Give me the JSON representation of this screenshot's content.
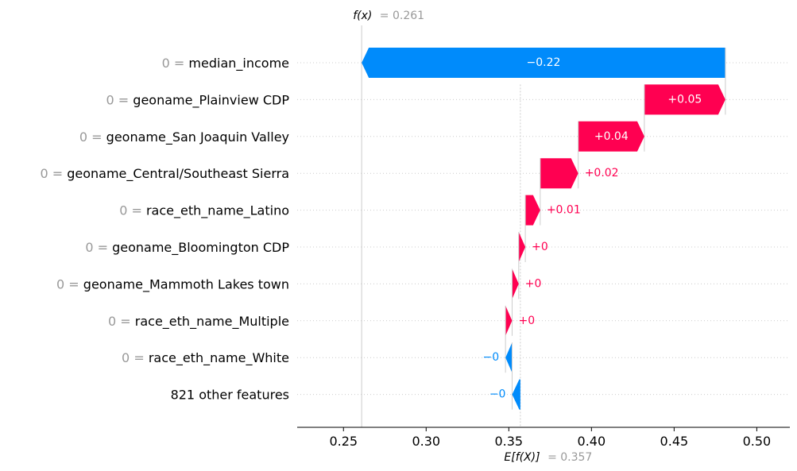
{
  "colors": {
    "positive": "#ff0051",
    "negative": "#008bfb",
    "grid": "#cccccc",
    "muted": "#999999"
  },
  "chart_data": {
    "type": "waterfall",
    "title": "",
    "xlabel": "",
    "ylabel": "",
    "xlim": [
      0.222,
      0.52
    ],
    "xticks": [
      "0.25",
      "0.30",
      "0.35",
      "0.40",
      "0.45",
      "0.50"
    ],
    "xtick_values": [
      0.25,
      0.3,
      0.35,
      0.4,
      0.45,
      0.5
    ],
    "base_value": 0.357,
    "output_value": 0.261,
    "fx_label": "f(x)",
    "fx_value_text": "= 0.261",
    "ex_label": "E[f(X)]",
    "ex_value_text": "= 0.357",
    "features": [
      {
        "value_text": "0 =",
        "name": "median_income",
        "start": 0.481,
        "end": 0.261,
        "label": "−0.22",
        "sign": "neg"
      },
      {
        "value_text": "0 =",
        "name": "geoname_Plainview CDP",
        "start": 0.432,
        "end": 0.481,
        "label": "+0.05",
        "sign": "pos"
      },
      {
        "value_text": "0 =",
        "name": "geoname_San Joaquin Valley",
        "start": 0.392,
        "end": 0.432,
        "label": "+0.04",
        "sign": "pos"
      },
      {
        "value_text": "0 =",
        "name": "geoname_Central/Southeast Sierra",
        "start": 0.369,
        "end": 0.392,
        "label": "+0.02",
        "sign": "pos"
      },
      {
        "value_text": "0 =",
        "name": "race_eth_name_Latino",
        "start": 0.36,
        "end": 0.369,
        "label": "+0.01",
        "sign": "pos"
      },
      {
        "value_text": "0 =",
        "name": "geoname_Bloomington CDP",
        "start": 0.356,
        "end": 0.36,
        "label": "+0",
        "sign": "pos"
      },
      {
        "value_text": "0 =",
        "name": "geoname_Mammoth Lakes town",
        "start": 0.352,
        "end": 0.356,
        "label": "+0",
        "sign": "pos"
      },
      {
        "value_text": "0 =",
        "name": "race_eth_name_Multiple",
        "start": 0.348,
        "end": 0.352,
        "label": "+0",
        "sign": "pos"
      },
      {
        "value_text": "0 =",
        "name": "race_eth_name_White",
        "start": 0.352,
        "end": 0.348,
        "label": "−0",
        "sign": "neg"
      },
      {
        "value_text": "",
        "name": "821 other features",
        "start": 0.357,
        "end": 0.352,
        "label": "−0",
        "sign": "neg"
      }
    ]
  }
}
